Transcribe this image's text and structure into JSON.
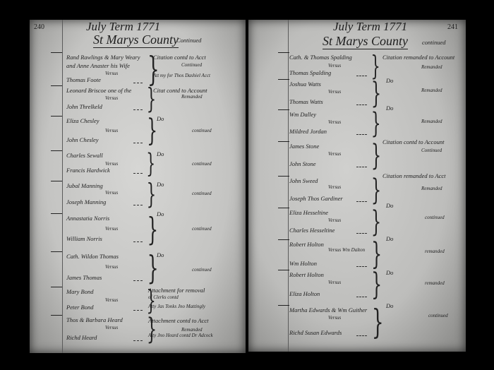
{
  "document": "Court docket ledger, two-page spread",
  "pages": [
    {
      "page_number": "240",
      "term": "July Term 1771",
      "county": "St Marys County",
      "continued": "Continued",
      "entries": [
        {
          "plaintiff": [
            "Rand Rawlings & Mary Weary",
            "and Anne Anaster his Wife"
          ],
          "versus": "Versus",
          "defendant": "Thomas Foote",
          "notes": [
            "Citation contd to Acct",
            "Continued",
            "Att my for Thos Dashiel Acct"
          ]
        },
        {
          "plaintiff": [
            "Leonard Briscoe one of the"
          ],
          "versus": "Versus",
          "defendant": "John Threlkeld",
          "notes": [
            "Citat contd to Account",
            "Remanded"
          ]
        },
        {
          "plaintiff": [
            "Eliza Chesley"
          ],
          "versus": "Versus",
          "defendant": "John Chesley",
          "notes": [
            "Do",
            "continued"
          ]
        },
        {
          "plaintiff": [
            "Charles Sewall"
          ],
          "versus": "Versus",
          "defendant": "Francis Hardwick",
          "notes": [
            "Do",
            "continued"
          ]
        },
        {
          "plaintiff": [
            "Jubal Manning"
          ],
          "versus": "Versus",
          "defendant": "Joseph Manning",
          "notes": [
            "Do",
            "continued"
          ]
        },
        {
          "plaintiff": [
            "Annastatia Norris"
          ],
          "versus": "Versus",
          "defendant": "William Norris",
          "notes": [
            "Do",
            "continued"
          ]
        },
        {
          "plaintiff": [
            "Cath. Wildon Thomas"
          ],
          "versus": "Versus",
          "defendant": "James Thomas",
          "notes": [
            "Do",
            "continued"
          ]
        },
        {
          "plaintiff": [
            "Mary Bond"
          ],
          "versus": "Versus",
          "defendant": "Peter Bond",
          "notes": [
            "Attachment for removal",
            "of Clerks    contd",
            "Atty Jas Tonks Jno Mattingly"
          ]
        },
        {
          "plaintiff": [
            "Thos & Barbara Heard"
          ],
          "versus": "Versus",
          "defendant": "Richd Heard",
          "notes": [
            "Attachment contd to Acct",
            "Remanded",
            "Atty Jno Heard contd Dr Adcock"
          ]
        }
      ]
    },
    {
      "page_number": "241",
      "term": "July Term 1771",
      "county": "St Marys County",
      "continued": "continued",
      "entries": [
        {
          "plaintiff": [
            "Cath. & Thomas Spalding"
          ],
          "versus": "Versus",
          "defendant": "Thomas Spalding",
          "notes": [
            "Citation remanded to Account",
            "Remanded"
          ]
        },
        {
          "plaintiff": [
            "Joshua Watts"
          ],
          "versus": "Versus",
          "defendant": "Thomas Watts",
          "notes": [
            "Do",
            "Remanded"
          ]
        },
        {
          "plaintiff": [
            "Wm Dalley"
          ],
          "versus": "Versus",
          "defendant": "Mildred Jordan",
          "notes": [
            "Do",
            "Remanded"
          ]
        },
        {
          "plaintiff": [
            "James Stone"
          ],
          "versus": "Versus",
          "defendant": "John Stone",
          "notes": [
            "Citation contd to Account",
            "Continued"
          ]
        },
        {
          "plaintiff": [
            "John Sweed"
          ],
          "versus": "Versus",
          "defendant": "Joseph Thos Gardiner",
          "notes": [
            "Citation remanded to Acct",
            "Remanded"
          ]
        },
        {
          "plaintiff": [
            "Eliza Hesseltine"
          ],
          "versus": "Versus",
          "defendant": "Charles Hesseltine",
          "notes": [
            "Do",
            "continued"
          ]
        },
        {
          "plaintiff": [
            "Robert Holton"
          ],
          "versus": "Versus Wm Dalton",
          "defendant": "Wm Holton",
          "notes": [
            "Do",
            "remanded"
          ]
        },
        {
          "plaintiff": [
            "Robert Holton"
          ],
          "versus": "Versus",
          "defendant": "Eliza Holton",
          "notes": [
            "Do",
            "remanded"
          ]
        },
        {
          "plaintiff": [
            "Martha Edwards & Wm Guither"
          ],
          "versus": "Versus",
          "defendant": "Richd Susan Edwards",
          "notes": [
            "Do",
            "continued"
          ]
        }
      ]
    }
  ]
}
